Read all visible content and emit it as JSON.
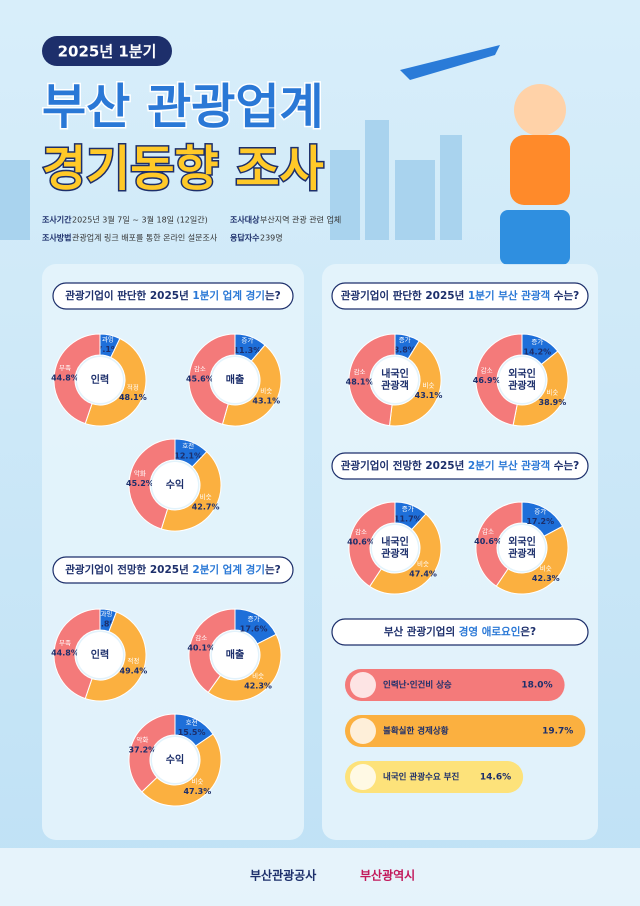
{
  "header": {
    "badge": "2025년 1분기",
    "title_lines": [
      "부산 관광업계",
      "경기동향 조사"
    ],
    "info": [
      {
        "label": "조사기간",
        "value": "2025년 3월 7일 ~ 3월 18일 (12일간)"
      },
      {
        "label": "조사대상",
        "value": "부산지역 관광 관련 업체"
      },
      {
        "label": "조사방법",
        "value": "관광업계 링크 배포를 통한 온라인 설문조사"
      },
      {
        "label": "응답자수",
        "value": "239명"
      }
    ]
  },
  "sections": [
    {
      "title": {
        "pre": "관광기업이 판단한 2025년 ",
        "em": "1분기 업계 경기",
        "post": "는?"
      },
      "donuts": [
        {
          "center": [
            "인력"
          ],
          "segments": [
            {
              "name": "과잉",
              "value": 7.1,
              "value_label": "7.1%",
              "color": "#1e6fd9"
            },
            {
              "name": "적정",
              "value": 48.1,
              "value_label": "48.1%",
              "color": "#fbb040"
            },
            {
              "name": "부족",
              "value": 44.8,
              "value_label": "44.8%",
              "color": "#f47a7a"
            }
          ]
        },
        {
          "center": [
            "매출"
          ],
          "segments": [
            {
              "name": "증가",
              "value": 11.3,
              "value_label": "11.3%",
              "color": "#1e6fd9"
            },
            {
              "name": "비슷",
              "value": 43.1,
              "value_label": "43.1%",
              "color": "#fbb040"
            },
            {
              "name": "감소",
              "value": 45.6,
              "value_label": "45.6%",
              "color": "#f47a7a"
            }
          ]
        },
        {
          "center": [
            "수익"
          ],
          "segments": [
            {
              "name": "호전",
              "value": 12.1,
              "value_label": "12.1%",
              "color": "#1e6fd9"
            },
            {
              "name": "비슷",
              "value": 42.7,
              "value_label": "42.7%",
              "color": "#fbb040"
            },
            {
              "name": "악화",
              "value": 45.2,
              "value_label": "45.2%",
              "color": "#f47a7a"
            }
          ]
        }
      ]
    },
    {
      "title": {
        "pre": "관광기업이 전망한 2025년 ",
        "em": "2분기 업계 경기",
        "post": "는?"
      },
      "donuts": [
        {
          "center": [
            "인력"
          ],
          "segments": [
            {
              "name": "과잉",
              "value": 5.8,
              "value_label": "5.8%",
              "color": "#1e6fd9"
            },
            {
              "name": "적정",
              "value": 49.4,
              "value_label": "49.4%",
              "color": "#fbb040"
            },
            {
              "name": "부족",
              "value": 44.8,
              "value_label": "44.8%",
              "color": "#f47a7a"
            }
          ]
        },
        {
          "center": [
            "매출"
          ],
          "segments": [
            {
              "name": "증가",
              "value": 17.6,
              "value_label": "17.6%",
              "color": "#1e6fd9"
            },
            {
              "name": "비슷",
              "value": 42.3,
              "value_label": "42.3%",
              "color": "#fbb040"
            },
            {
              "name": "감소",
              "value": 40.1,
              "value_label": "40.1%",
              "color": "#f47a7a"
            }
          ]
        },
        {
          "center": [
            "수익"
          ],
          "segments": [
            {
              "name": "호전",
              "value": 15.5,
              "value_label": "15.5%",
              "color": "#1e6fd9"
            },
            {
              "name": "비슷",
              "value": 47.3,
              "value_label": "47.3%",
              "color": "#fbb040"
            },
            {
              "name": "악화",
              "value": 37.2,
              "value_label": "37.2%",
              "color": "#f47a7a"
            }
          ]
        }
      ]
    },
    {
      "title": {
        "pre": "관광기업이 판단한 2025년 ",
        "em": "1분기 부산 관광객",
        "post": " 수는?"
      },
      "donuts": [
        {
          "center": [
            "내국인",
            "관광객"
          ],
          "segments": [
            {
              "name": "증가",
              "value": 8.8,
              "value_label": "8.8%",
              "color": "#1e6fd9"
            },
            {
              "name": "비슷",
              "value": 43.1,
              "value_label": "43.1%",
              "color": "#fbb040"
            },
            {
              "name": "감소",
              "value": 48.1,
              "value_label": "48.1%",
              "color": "#f47a7a"
            }
          ]
        },
        {
          "center": [
            "외국인",
            "관광객"
          ],
          "segments": [
            {
              "name": "증가",
              "value": 14.2,
              "value_label": "14.2%",
              "color": "#1e6fd9"
            },
            {
              "name": "비슷",
              "value": 38.9,
              "value_label": "38.9%",
              "color": "#fbb040"
            },
            {
              "name": "감소",
              "value": 46.9,
              "value_label": "46.9%",
              "color": "#f47a7a"
            }
          ]
        }
      ]
    },
    {
      "title": {
        "pre": "관광기업이 전망한 2025년 ",
        "em": "2분기 부산 관광객",
        "post": " 수는?"
      },
      "donuts": [
        {
          "center": [
            "내국인",
            "관광객"
          ],
          "segments": [
            {
              "name": "증가",
              "value": 11.7,
              "value_label": "11.7%",
              "color": "#1e6fd9"
            },
            {
              "name": "비슷",
              "value": 47.4,
              "value_label": "47.4%",
              "color": "#fbb040"
            },
            {
              "name": "감소",
              "value": 40.6,
              "value_label": "40.6%",
              "color": "#f47a7a"
            }
          ]
        },
        {
          "center": [
            "외국인",
            "관광객"
          ],
          "segments": [
            {
              "name": "증가",
              "value": 17.2,
              "value_label": "17.2%",
              "color": "#1e6fd9"
            },
            {
              "name": "비슷",
              "value": 42.3,
              "value_label": "42.3%",
              "color": "#fbb040"
            },
            {
              "name": "감소",
              "value": 40.6,
              "value_label": "40.6%",
              "color": "#f47a7a"
            }
          ]
        }
      ]
    }
  ],
  "barrier": {
    "title": {
      "pre": "부산 관광기업의 ",
      "em": "경영 애로요인",
      "post": "은?"
    },
    "items": [
      {
        "label": "인력난·인건비 상승",
        "value": 18.0,
        "value_label": "18.0%",
        "color": "#f47a7a"
      },
      {
        "label": "불확실한 경제상황",
        "value": 19.7,
        "value_label": "19.7%",
        "color": "#fbb040"
      },
      {
        "label": "내국인 관광수요 부진",
        "value": 14.6,
        "value_label": "14.6%",
        "color": "#fde27a"
      }
    ]
  },
  "footer": {
    "logos": [
      "부산관광공사",
      "부산광역시"
    ]
  }
}
